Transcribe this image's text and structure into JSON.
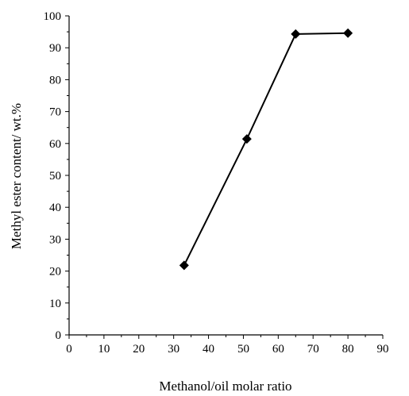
{
  "chart_data": {
    "type": "line",
    "xlabel": "Methanol/oil molar ratio",
    "ylabel": "Methyl ester content/ wt.%",
    "xlim": [
      0,
      90
    ],
    "ylim": [
      0,
      100
    ],
    "x_ticks": [
      0,
      10,
      20,
      30,
      40,
      50,
      60,
      70,
      80,
      90
    ],
    "y_ticks": [
      0,
      10,
      20,
      30,
      40,
      50,
      60,
      70,
      80,
      90,
      100
    ],
    "grid": false,
    "marker": "diamond",
    "series": [
      {
        "x": [
          33,
          51,
          65,
          80
        ],
        "y": [
          21.8,
          61.4,
          94.3,
          94.6
        ]
      }
    ],
    "colors": {
      "line": "#000000",
      "marker": "#000000"
    }
  }
}
